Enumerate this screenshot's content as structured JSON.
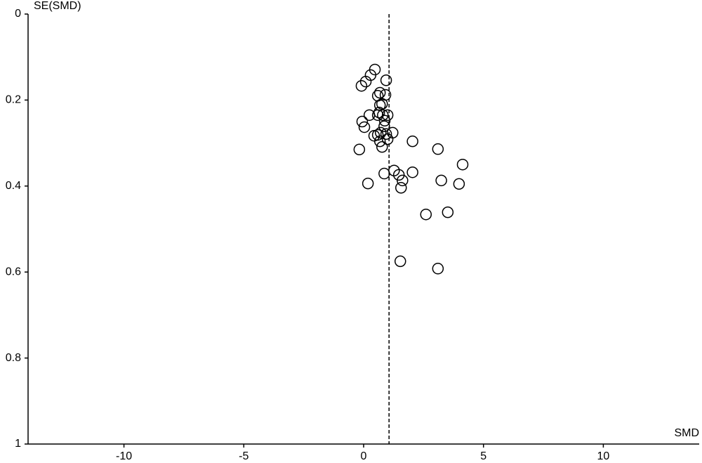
{
  "chart_data": {
    "type": "scatter",
    "x_label": "SMD",
    "y_label": "SE(SMD)",
    "xlim": [
      -14,
      14
    ],
    "ylim": [
      1,
      0
    ],
    "xticks": [
      -10,
      -5,
      0,
      5,
      10
    ],
    "yticks": [
      0,
      0.2,
      0.4,
      0.6,
      0.8,
      1
    ],
    "summary_x": 1.06,
    "color": "#000000",
    "x": [
      0.47,
      0.29,
      0.09,
      -0.09,
      0.94,
      0.68,
      0.91,
      0.59,
      0.68,
      0.77,
      0.65,
      0.8,
      0.59,
      1.0,
      0.24,
      0.88,
      -0.06,
      0.03,
      0.86,
      0.71,
      0.94,
      1.21,
      0.59,
      0.44,
      1.0,
      0.68,
      0.77,
      -0.18,
      2.04,
      3.1,
      4.13,
      1.27,
      0.86,
      1.47,
      2.04,
      1.62,
      3.24,
      0.18,
      1.56,
      3.98,
      2.6,
      3.51,
      1.53,
      3.1
    ],
    "values": [
      0.129,
      0.142,
      0.157,
      0.167,
      0.154,
      0.183,
      0.188,
      0.19,
      0.212,
      0.209,
      0.229,
      0.235,
      0.235,
      0.235,
      0.235,
      0.248,
      0.25,
      0.263,
      0.261,
      0.276,
      0.279,
      0.276,
      0.281,
      0.283,
      0.291,
      0.296,
      0.309,
      0.315,
      0.296,
      0.314,
      0.35,
      0.364,
      0.371,
      0.374,
      0.368,
      0.387,
      0.387,
      0.394,
      0.404,
      0.395,
      0.466,
      0.461,
      0.575,
      0.592
    ]
  }
}
